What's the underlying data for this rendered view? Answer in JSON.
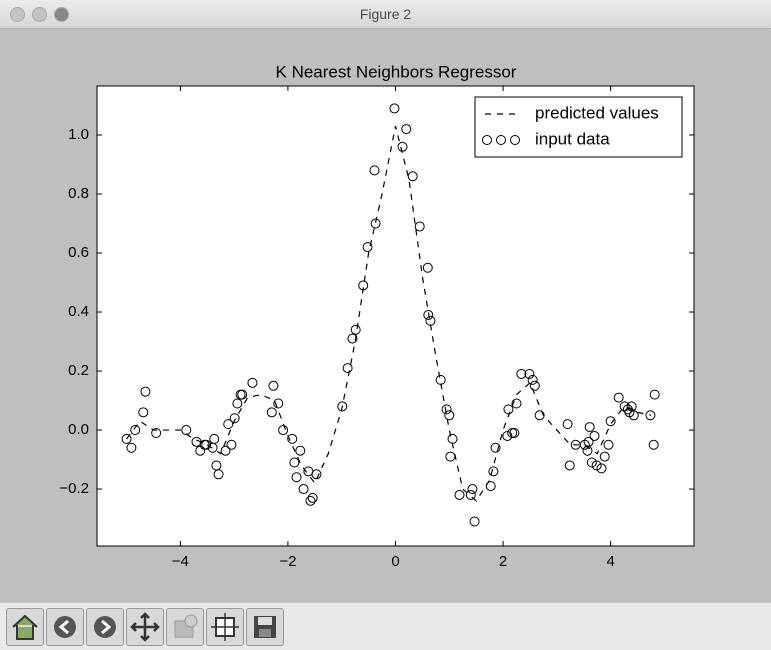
{
  "window": {
    "title": "Figure 2"
  },
  "chart_data": {
    "type": "scatter",
    "title": "K Nearest Neighbors Regressor",
    "xlim": [
      -5.55,
      5.55
    ],
    "ylim": [
      -0.393,
      1.166
    ],
    "xticks": [
      {
        "value": -4,
        "label": "−4"
      },
      {
        "value": -2,
        "label": "−2"
      },
      0,
      2,
      4
    ],
    "yticks": [
      {
        "value": -0.2,
        "label": "−0.2"
      },
      {
        "value": 0,
        "label": "0.0"
      },
      0.2,
      0.4,
      0.6,
      0.8,
      {
        "value": 1,
        "label": "1.0"
      }
    ],
    "grid": false,
    "legend": "upper right",
    "series": [
      {
        "name": "predicted values",
        "type": "line",
        "color": "#000000",
        "x": [
          -5,
          -4.75,
          -4.5,
          -4.25,
          -4,
          -3.75,
          -3.5,
          -3.25,
          -3,
          -2.75,
          -2.5,
          -2.25,
          -2,
          -1.75,
          -1.5,
          -1.25,
          -1,
          -0.75,
          -0.5,
          -0.25,
          0,
          0.25,
          0.5,
          0.75,
          1,
          1.25,
          1.5,
          1.75,
          2,
          2.25,
          2.5,
          2.75,
          3,
          3.25,
          3.5,
          3.75,
          4,
          4.25,
          4.5,
          4.75
        ],
        "values": [
          -0.03,
          0.03,
          0.0,
          0.0,
          0.0,
          -0.03,
          -0.05,
          -0.08,
          0.03,
          0.11,
          0.12,
          0.1,
          -0.02,
          -0.12,
          -0.18,
          -0.08,
          0.07,
          0.3,
          0.6,
          0.8,
          1.03,
          0.85,
          0.52,
          0.25,
          0.0,
          -0.2,
          -0.24,
          -0.17,
          0.0,
          0.12,
          0.16,
          0.05,
          0.0,
          -0.05,
          -0.05,
          -0.08,
          0.02,
          0.08,
          0.06,
          0.05
        ]
      },
      {
        "name": "input data",
        "type": "scatter",
        "color": "#000000",
        "x": [
          -5.0,
          -4.91,
          -4.84,
          -4.69,
          -4.65,
          -4.45,
          -3.89,
          -3.7,
          -3.63,
          -3.55,
          -3.52,
          -3.4,
          -3.37,
          -3.33,
          -3.29,
          -3.16,
          -3.11,
          -3.05,
          -2.99,
          -2.94,
          -2.88,
          -2.85,
          -2.66,
          -2.3,
          -2.27,
          -2.18,
          -2.09,
          -1.92,
          -1.88,
          -1.84,
          -1.77,
          -1.71,
          -1.62,
          -1.58,
          -1.54,
          -1.47,
          -0.99,
          -0.89,
          -0.8,
          -0.74,
          -0.6,
          -0.52,
          -0.39,
          -0.37,
          -0.02,
          0.13,
          0.2,
          0.32,
          0.45,
          0.6,
          0.61,
          0.65,
          0.84,
          0.95,
          1.0,
          1.02,
          1.06,
          1.19,
          1.4,
          1.43,
          1.47,
          1.77,
          1.82,
          1.86,
          2.08,
          2.1,
          2.17,
          2.21,
          2.25,
          2.34,
          2.49,
          2.55,
          2.59,
          2.68,
          3.2,
          3.24,
          3.35,
          3.52,
          3.57,
          3.59,
          3.61,
          3.65,
          3.7,
          3.74,
          3.83,
          3.89,
          3.96,
          4.0,
          4.15,
          4.26,
          4.32,
          4.35,
          4.39,
          4.43,
          4.74,
          4.8,
          4.82
        ],
        "values": [
          -0.03,
          -0.06,
          0.0,
          0.06,
          0.13,
          -0.01,
          0.0,
          -0.04,
          -0.07,
          -0.05,
          -0.05,
          -0.06,
          -0.03,
          -0.12,
          -0.15,
          -0.07,
          0.02,
          -0.05,
          0.04,
          0.09,
          0.12,
          0.12,
          0.16,
          0.06,
          0.15,
          0.09,
          0.0,
          -0.03,
          -0.11,
          -0.16,
          -0.07,
          -0.2,
          -0.14,
          -0.24,
          -0.23,
          -0.15,
          0.08,
          0.21,
          0.31,
          0.34,
          0.49,
          0.62,
          0.88,
          0.7,
          1.09,
          0.96,
          1.02,
          0.86,
          0.69,
          0.55,
          0.39,
          0.37,
          0.17,
          0.07,
          0.05,
          -0.09,
          -0.03,
          -0.22,
          -0.22,
          -0.2,
          -0.31,
          -0.19,
          -0.14,
          -0.06,
          -0.02,
          0.07,
          -0.01,
          -0.01,
          0.09,
          0.19,
          0.19,
          0.17,
          0.15,
          0.05,
          0.02,
          -0.12,
          -0.05,
          -0.05,
          -0.07,
          -0.04,
          0.01,
          -0.11,
          -0.02,
          -0.12,
          -0.13,
          -0.09,
          -0.05,
          0.03,
          0.11,
          0.08,
          0.07,
          0.06,
          0.08,
          0.05,
          0.05,
          -0.05,
          0.12
        ]
      }
    ]
  }
}
